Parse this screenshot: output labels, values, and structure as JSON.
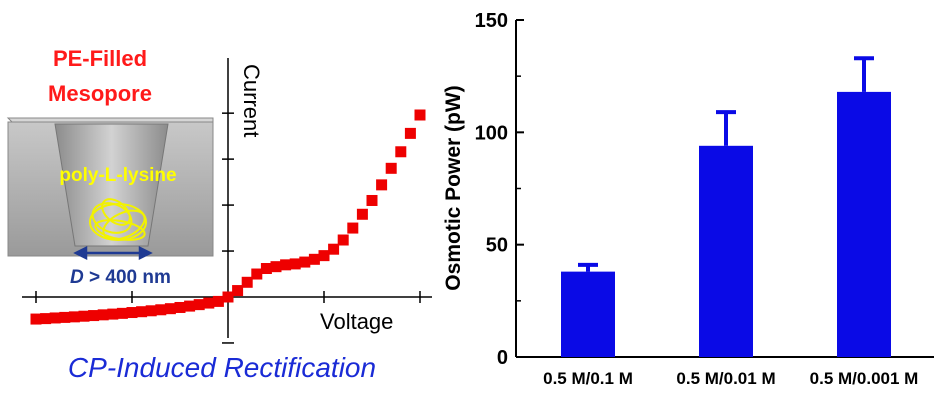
{
  "left_panel": {
    "title_line1": "PE-Filled",
    "title_line2": "Mesopore",
    "polymer_label": "poly-L-lysine",
    "diameter_label_D": "D",
    "diameter_label_rest": " > 400 nm",
    "caption": "CP-Induced Rectification",
    "colors": {
      "title": "#ff1a1a",
      "polymer": "#ffff00",
      "caption": "#1a2bd6",
      "arrow": "#1f3a93",
      "points": "#ee0000"
    }
  },
  "chart_data": [
    {
      "type": "scatter",
      "title": "",
      "xlabel": "Voltage",
      "ylabel": "Current",
      "axes_style": "crossing-at-origin, no tick labels",
      "points": [
        [
          -2.0,
          -0.24
        ],
        [
          -1.9,
          -0.235
        ],
        [
          -1.8,
          -0.228
        ],
        [
          -1.7,
          -0.222
        ],
        [
          -1.6,
          -0.216
        ],
        [
          -1.5,
          -0.209
        ],
        [
          -1.4,
          -0.202
        ],
        [
          -1.3,
          -0.194
        ],
        [
          -1.2,
          -0.186
        ],
        [
          -1.1,
          -0.178
        ],
        [
          -1.0,
          -0.169
        ],
        [
          -0.9,
          -0.16
        ],
        [
          -0.8,
          -0.15
        ],
        [
          -0.7,
          -0.139
        ],
        [
          -0.6,
          -0.127
        ],
        [
          -0.5,
          -0.114
        ],
        [
          -0.4,
          -0.099
        ],
        [
          -0.3,
          -0.083
        ],
        [
          -0.2,
          -0.066
        ],
        [
          -0.1,
          -0.048
        ],
        [
          0.0,
          0.0
        ],
        [
          0.1,
          0.07
        ],
        [
          0.2,
          0.16
        ],
        [
          0.3,
          0.25
        ],
        [
          0.4,
          0.31
        ],
        [
          0.5,
          0.33
        ],
        [
          0.6,
          0.35
        ],
        [
          0.7,
          0.36
        ],
        [
          0.8,
          0.38
        ],
        [
          0.9,
          0.41
        ],
        [
          1.0,
          0.45
        ],
        [
          1.1,
          0.52
        ],
        [
          1.2,
          0.62
        ],
        [
          1.3,
          0.75
        ],
        [
          1.4,
          0.9
        ],
        [
          1.5,
          1.05
        ],
        [
          1.6,
          1.22
        ],
        [
          1.7,
          1.4
        ],
        [
          1.8,
          1.58
        ],
        [
          1.9,
          1.78
        ],
        [
          2.0,
          1.98
        ]
      ],
      "xlim": [
        -2.1,
        2.1
      ],
      "ylim": [
        -0.35,
        2.2
      ]
    },
    {
      "type": "bar",
      "title": "",
      "xlabel": "",
      "ylabel": "Osmotic Power (pW)",
      "categories": [
        "0.5 M/0.1 M",
        "0.5 M/0.01 M",
        "0.5 M/0.001 M"
      ],
      "values": [
        38,
        94,
        118
      ],
      "errors": [
        3,
        15,
        15
      ],
      "ylim": [
        0,
        150
      ],
      "yticks": [
        "0",
        "50",
        "100",
        "150"
      ],
      "bar_color": "#0a0ae6"
    }
  ]
}
